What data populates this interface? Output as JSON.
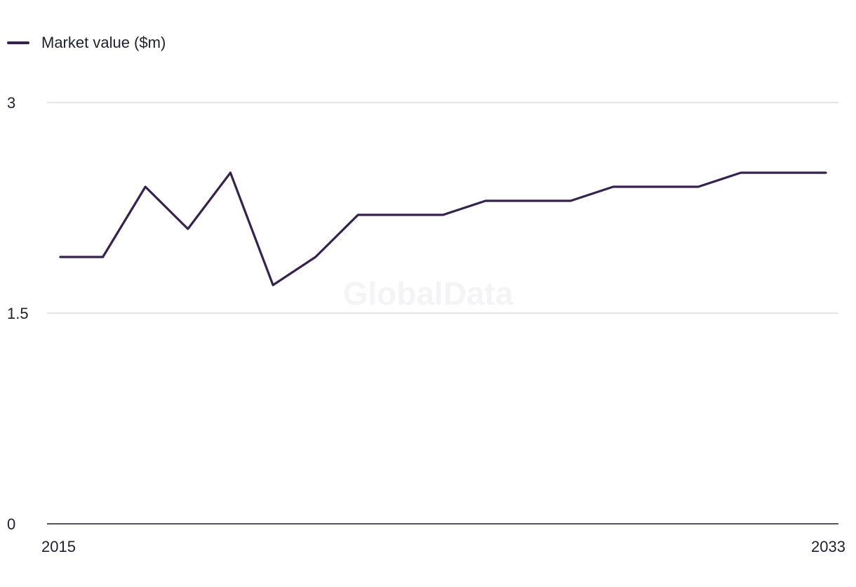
{
  "chart_data": {
    "type": "line",
    "title": "",
    "xlabel": "",
    "ylabel": "",
    "x": [
      2015,
      2016,
      2017,
      2018,
      2019,
      2020,
      2021,
      2022,
      2023,
      2024,
      2025,
      2026,
      2027,
      2028,
      2029,
      2030,
      2031,
      2032,
      2033
    ],
    "series": [
      {
        "name": "Market value ($m)",
        "color": "#35224f",
        "values": [
          1.9,
          1.9,
          2.4,
          2.1,
          2.5,
          1.7,
          1.9,
          2.2,
          2.2,
          2.2,
          2.3,
          2.3,
          2.3,
          2.4,
          2.4,
          2.4,
          2.5,
          2.5,
          2.5
        ]
      }
    ],
    "ylim": [
      0,
      3
    ],
    "y_ticks": [
      "0",
      "1.5",
      "3"
    ],
    "x_tick_labels": [
      "2015",
      "2033"
    ],
    "grid": true,
    "legend_position": "top-left",
    "watermark": "GlobalData"
  }
}
